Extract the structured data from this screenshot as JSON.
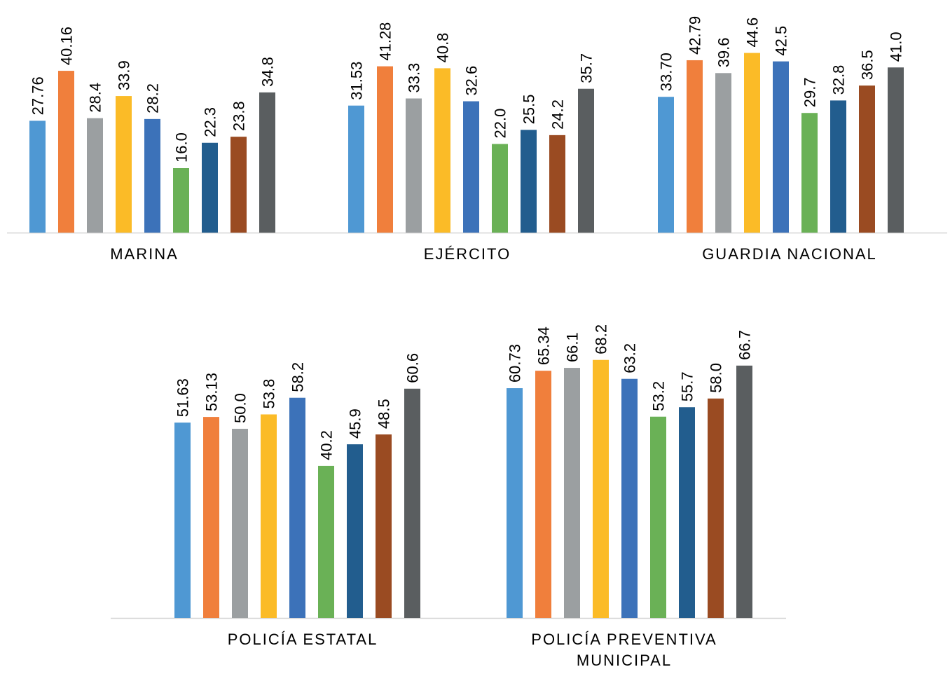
{
  "chart_data": [
    {
      "type": "bar",
      "panel": "top",
      "categories": [
        "MARINA",
        "EJÉRCITO",
        "GUARDIA NACIONAL"
      ],
      "category_lines": [
        [
          "MARINA"
        ],
        [
          "EJÉRCITO"
        ],
        [
          "GUARDIA NACIONAL"
        ]
      ],
      "series_colors": [
        "#4f98d3",
        "#f07f3c",
        "#9b9fa1",
        "#fbbb27",
        "#3c72b9",
        "#6ab156",
        "#225d8e",
        "#9a4b22",
        "#5a5e60"
      ],
      "groups": [
        {
          "values": [
            27.76,
            40.16,
            28.4,
            33.9,
            28.2,
            16.0,
            22.3,
            23.8,
            34.8
          ],
          "labels": [
            "27.76",
            "40.16",
            "28.4",
            "33.9",
            "28.2",
            "16.0",
            "22.3",
            "23.8",
            "34.8"
          ]
        },
        {
          "values": [
            31.53,
            41.28,
            33.3,
            40.8,
            32.6,
            22.0,
            25.5,
            24.2,
            35.7
          ],
          "labels": [
            "31.53",
            "41.28",
            "33.3",
            "40.8",
            "32.6",
            "22.0",
            "25.5",
            "24.2",
            "35.7"
          ]
        },
        {
          "values": [
            33.7,
            42.79,
            39.6,
            44.6,
            42.5,
            29.7,
            32.8,
            36.5,
            41.0
          ],
          "labels": [
            "33.70",
            "42.79",
            "39.6",
            "44.6",
            "42.5",
            "29.7",
            "32.8",
            "36.5",
            "41.0"
          ]
        }
      ],
      "ylim": [
        0,
        100
      ],
      "grid": false,
      "legend": "none",
      "title": "",
      "xlabel": "",
      "ylabel": ""
    },
    {
      "type": "bar",
      "panel": "bottom",
      "categories": [
        "POLICÍA ESTATAL",
        "POLICÍA PREVENTIVA MUNICIPAL"
      ],
      "category_lines": [
        [
          "POLICÍA ESTATAL"
        ],
        [
          "POLICÍA PREVENTIVA",
          "MUNICIPAL"
        ]
      ],
      "series_colors": [
        "#4f98d3",
        "#f07f3c",
        "#9b9fa1",
        "#fbbb27",
        "#3c72b9",
        "#6ab156",
        "#225d8e",
        "#9a4b22",
        "#5a5e60"
      ],
      "groups": [
        {
          "values": [
            51.63,
            53.13,
            50.0,
            53.8,
            58.2,
            40.2,
            45.9,
            48.5,
            60.6
          ],
          "labels": [
            "51.63",
            "53.13",
            "50.0",
            "53.8",
            "58.2",
            "40.2",
            "45.9",
            "48.5",
            "60.6"
          ]
        },
        {
          "values": [
            60.73,
            65.34,
            66.1,
            68.2,
            63.2,
            53.2,
            55.7,
            58.0,
            66.7
          ],
          "labels": [
            "60.73",
            "65.34",
            "66.1",
            "68.2",
            "63.2",
            "53.2",
            "55.7",
            "58.0",
            "66.7"
          ]
        }
      ],
      "ylim": [
        0,
        100
      ],
      "grid": false,
      "legend": "none",
      "title": "",
      "xlabel": "",
      "ylabel": ""
    }
  ]
}
